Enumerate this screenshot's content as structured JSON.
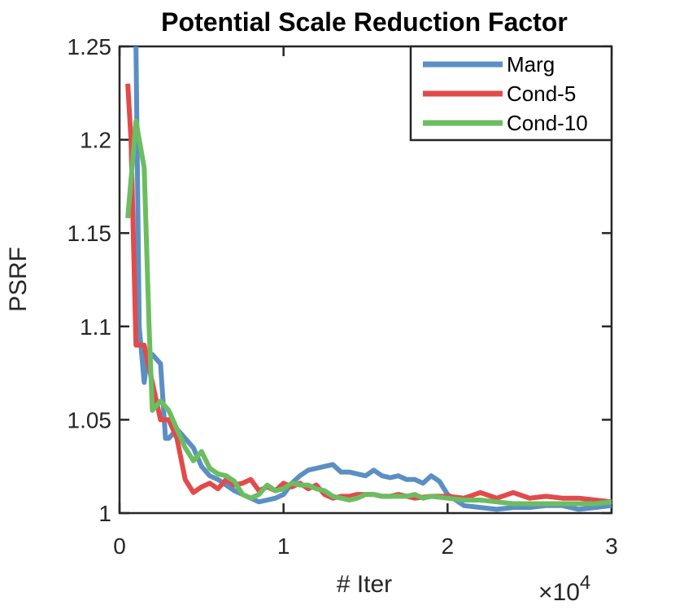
{
  "chart_data": {
    "type": "line",
    "title": "Potential Scale Reduction Factor",
    "xlabel": "# Iter",
    "ylabel": "PSRF",
    "xlim": [
      0,
      30000
    ],
    "ylim": [
      1,
      1.25
    ],
    "x_ticks": [
      0,
      10000,
      20000,
      30000
    ],
    "x_tick_labels": [
      "0",
      "1",
      "2",
      "3"
    ],
    "x_exponent_base": "×10",
    "x_exponent_power": "4",
    "y_ticks": [
      1,
      1.05,
      1.1,
      1.15,
      1.2,
      1.25
    ],
    "y_tick_labels": [
      "1",
      "1.05",
      "1.1",
      "1.15",
      "1.2",
      "1.25"
    ],
    "grid": false,
    "legend_position": "top-right",
    "series": [
      {
        "name": "Marg",
        "color": "#5b8fc4",
        "x": [
          1000,
          1200,
          1500,
          1700,
          2000,
          2500,
          2800,
          3000,
          3500,
          4000,
          4500,
          5000,
          5500,
          6000,
          6500,
          7000,
          7500,
          8000,
          8500,
          9000,
          9500,
          10000,
          10500,
          11000,
          11500,
          12000,
          12500,
          13000,
          13500,
          14000,
          14500,
          15000,
          15500,
          16000,
          16500,
          17000,
          17500,
          18000,
          18500,
          19000,
          19500,
          20000,
          21000,
          22000,
          23000,
          24000,
          25000,
          26000,
          27000,
          28000,
          29000,
          30000
        ],
        "y": [
          1.25,
          1.1,
          1.07,
          1.085,
          1.085,
          1.08,
          1.04,
          1.04,
          1.045,
          1.04,
          1.035,
          1.025,
          1.02,
          1.018,
          1.015,
          1.012,
          1.01,
          1.008,
          1.006,
          1.007,
          1.008,
          1.01,
          1.016,
          1.02,
          1.023,
          1.024,
          1.025,
          1.026,
          1.022,
          1.022,
          1.021,
          1.02,
          1.023,
          1.02,
          1.019,
          1.02,
          1.018,
          1.018,
          1.016,
          1.02,
          1.017,
          1.01,
          1.004,
          1.003,
          1.002,
          1.003,
          1.003,
          1.004,
          1.004,
          1.002,
          1.003,
          1.004
        ]
      },
      {
        "name": "Cond-5",
        "color": "#e34a4a",
        "x": [
          500,
          700,
          1000,
          1200,
          1500,
          2000,
          2500,
          3000,
          3500,
          4000,
          4500,
          5000,
          5500,
          6000,
          6500,
          7000,
          7500,
          8000,
          8500,
          9000,
          9500,
          10000,
          10500,
          11000,
          11500,
          12000,
          12500,
          13000,
          13500,
          14000,
          14500,
          15000,
          15500,
          16000,
          16500,
          17000,
          18000,
          19000,
          20000,
          21000,
          22000,
          23000,
          24000,
          25000,
          26000,
          27000,
          28000,
          29000,
          30000
        ],
        "y": [
          1.23,
          1.2,
          1.09,
          1.09,
          1.09,
          1.07,
          1.05,
          1.05,
          1.04,
          1.018,
          1.011,
          1.014,
          1.016,
          1.013,
          1.018,
          1.015,
          1.016,
          1.018,
          1.012,
          1.014,
          1.012,
          1.016,
          1.014,
          1.016,
          1.013,
          1.015,
          1.01,
          1.008,
          1.009,
          1.009,
          1.01,
          1.01,
          1.01,
          1.009,
          1.009,
          1.01,
          1.008,
          1.009,
          1.009,
          1.008,
          1.011,
          1.008,
          1.011,
          1.008,
          1.009,
          1.008,
          1.008,
          1.007,
          1.006
        ]
      },
      {
        "name": "Cond-10",
        "color": "#6cbd61",
        "x": [
          500,
          1000,
          1500,
          1800,
          2000,
          2500,
          3000,
          3500,
          4000,
          4500,
          5000,
          5500,
          6000,
          6500,
          7000,
          7500,
          8000,
          8500,
          9000,
          9500,
          10000,
          10500,
          11000,
          11500,
          12000,
          12500,
          13000,
          13500,
          14000,
          14500,
          15000,
          15500,
          16000,
          16500,
          17000,
          17500,
          18000,
          18500,
          19000,
          20000,
          21000,
          22000,
          23000,
          24000,
          25000,
          26000,
          27000,
          28000,
          29000,
          30000
        ],
        "y": [
          1.158,
          1.21,
          1.185,
          1.1,
          1.055,
          1.06,
          1.055,
          1.045,
          1.035,
          1.028,
          1.033,
          1.024,
          1.021,
          1.02,
          1.017,
          1.01,
          1.008,
          1.01,
          1.015,
          1.012,
          1.013,
          1.016,
          1.015,
          1.015,
          1.013,
          1.012,
          1.009,
          1.008,
          1.007,
          1.008,
          1.01,
          1.01,
          1.009,
          1.009,
          1.009,
          1.009,
          1.01,
          1.008,
          1.009,
          1.008,
          1.007,
          1.007,
          1.006,
          1.005,
          1.005,
          1.005,
          1.005,
          1.005,
          1.005,
          1.006
        ]
      }
    ]
  }
}
